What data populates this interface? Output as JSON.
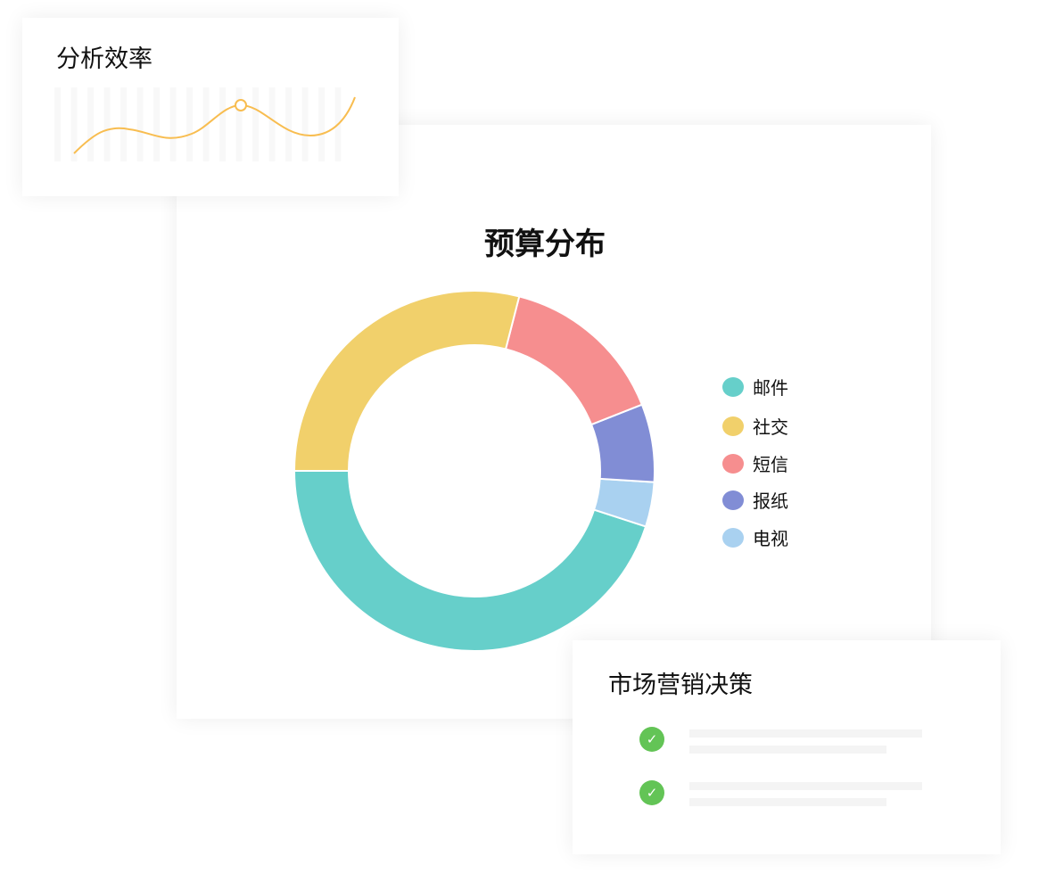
{
  "efficiency_card": {
    "title": "分析效率",
    "line_color": "#f8bd50"
  },
  "marketing_card": {
    "title": "市场营销决策",
    "check_color": "#63c456",
    "items": [
      {
        "icon": "check-circle-icon"
      },
      {
        "icon": "check-circle-icon"
      }
    ]
  },
  "chart_data": {
    "type": "pie",
    "variant": "donut",
    "title": "预算分布",
    "legend_position": "right",
    "categories": [
      "邮件",
      "社交",
      "短信",
      "报纸",
      "电视"
    ],
    "values": [
      45,
      29,
      15,
      7,
      4
    ],
    "colors": [
      "#66cfca",
      "#f1d06b",
      "#f68e8f",
      "#818dd5",
      "#a9d1f0"
    ],
    "slice_order": [
      "邮件",
      "电视",
      "报纸",
      "短信",
      "社交"
    ]
  }
}
